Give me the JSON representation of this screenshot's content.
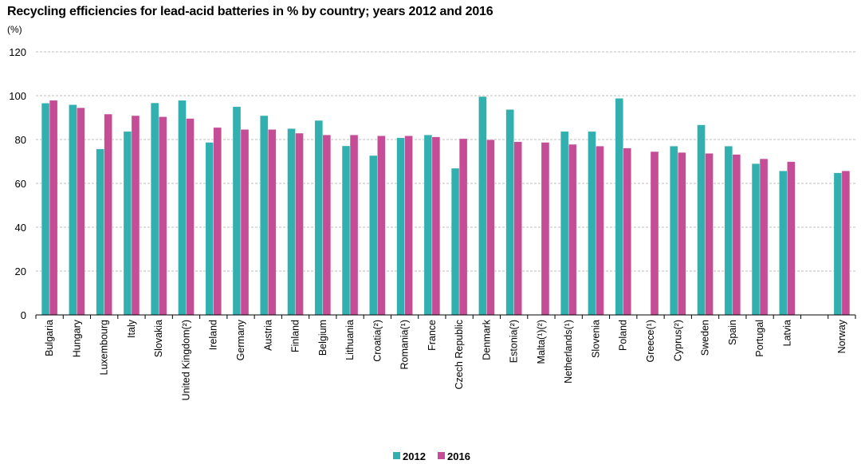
{
  "chart_data": {
    "type": "bar",
    "title": "Recycling efficiencies for lead-acid batteries in % by country; years 2012 and 2016",
    "ylabel": "(%)",
    "xlabel": "",
    "ylim": [
      0,
      120
    ],
    "yticks": [
      0,
      20,
      40,
      60,
      80,
      100,
      120
    ],
    "grid": true,
    "legend": "bottom",
    "categories": [
      "Bulgaria",
      "Hungary",
      "Luxembourg",
      "Italy",
      "Slovakia",
      "United Kingdom(²)",
      "Ireland",
      "Germany",
      "Austria",
      "Finland",
      "Belgium",
      "Lithuania",
      "Croatia(²)",
      "Romania(¹)",
      "France",
      "Czech Republic",
      "Denmark",
      "Estonia(²)",
      "Malta(¹)(²)",
      "Netherlands(¹)",
      "Slovenia",
      "Poland",
      "Greece(¹)",
      "Cyprus(²)",
      "Sweden",
      "Spain",
      "Portugal",
      "Latvia",
      "",
      "Norway"
    ],
    "series": [
      {
        "name": "2012",
        "color": "#32b0b0",
        "values": [
          96.6,
          95.9,
          75.7,
          83.7,
          96.7,
          97.9,
          78.7,
          95.0,
          90.9,
          85.0,
          88.7,
          77.1,
          72.7,
          80.8,
          82.1,
          66.9,
          99.6,
          93.7,
          null,
          83.7,
          83.7,
          98.8,
          null,
          77.0,
          86.7,
          77.0,
          69.0,
          65.7,
          null,
          64.8
        ]
      },
      {
        "name": "2016",
        "color": "#c44d96",
        "values": [
          97.9,
          94.5,
          91.6,
          90.9,
          90.4,
          89.6,
          85.5,
          84.6,
          84.6,
          82.9,
          82.1,
          82.1,
          81.7,
          81.7,
          81.2,
          80.4,
          79.9,
          79.0,
          78.7,
          77.8,
          77.0,
          76.1,
          74.5,
          74.1,
          73.7,
          73.2,
          71.2,
          69.9,
          null,
          65.7
        ]
      }
    ]
  }
}
